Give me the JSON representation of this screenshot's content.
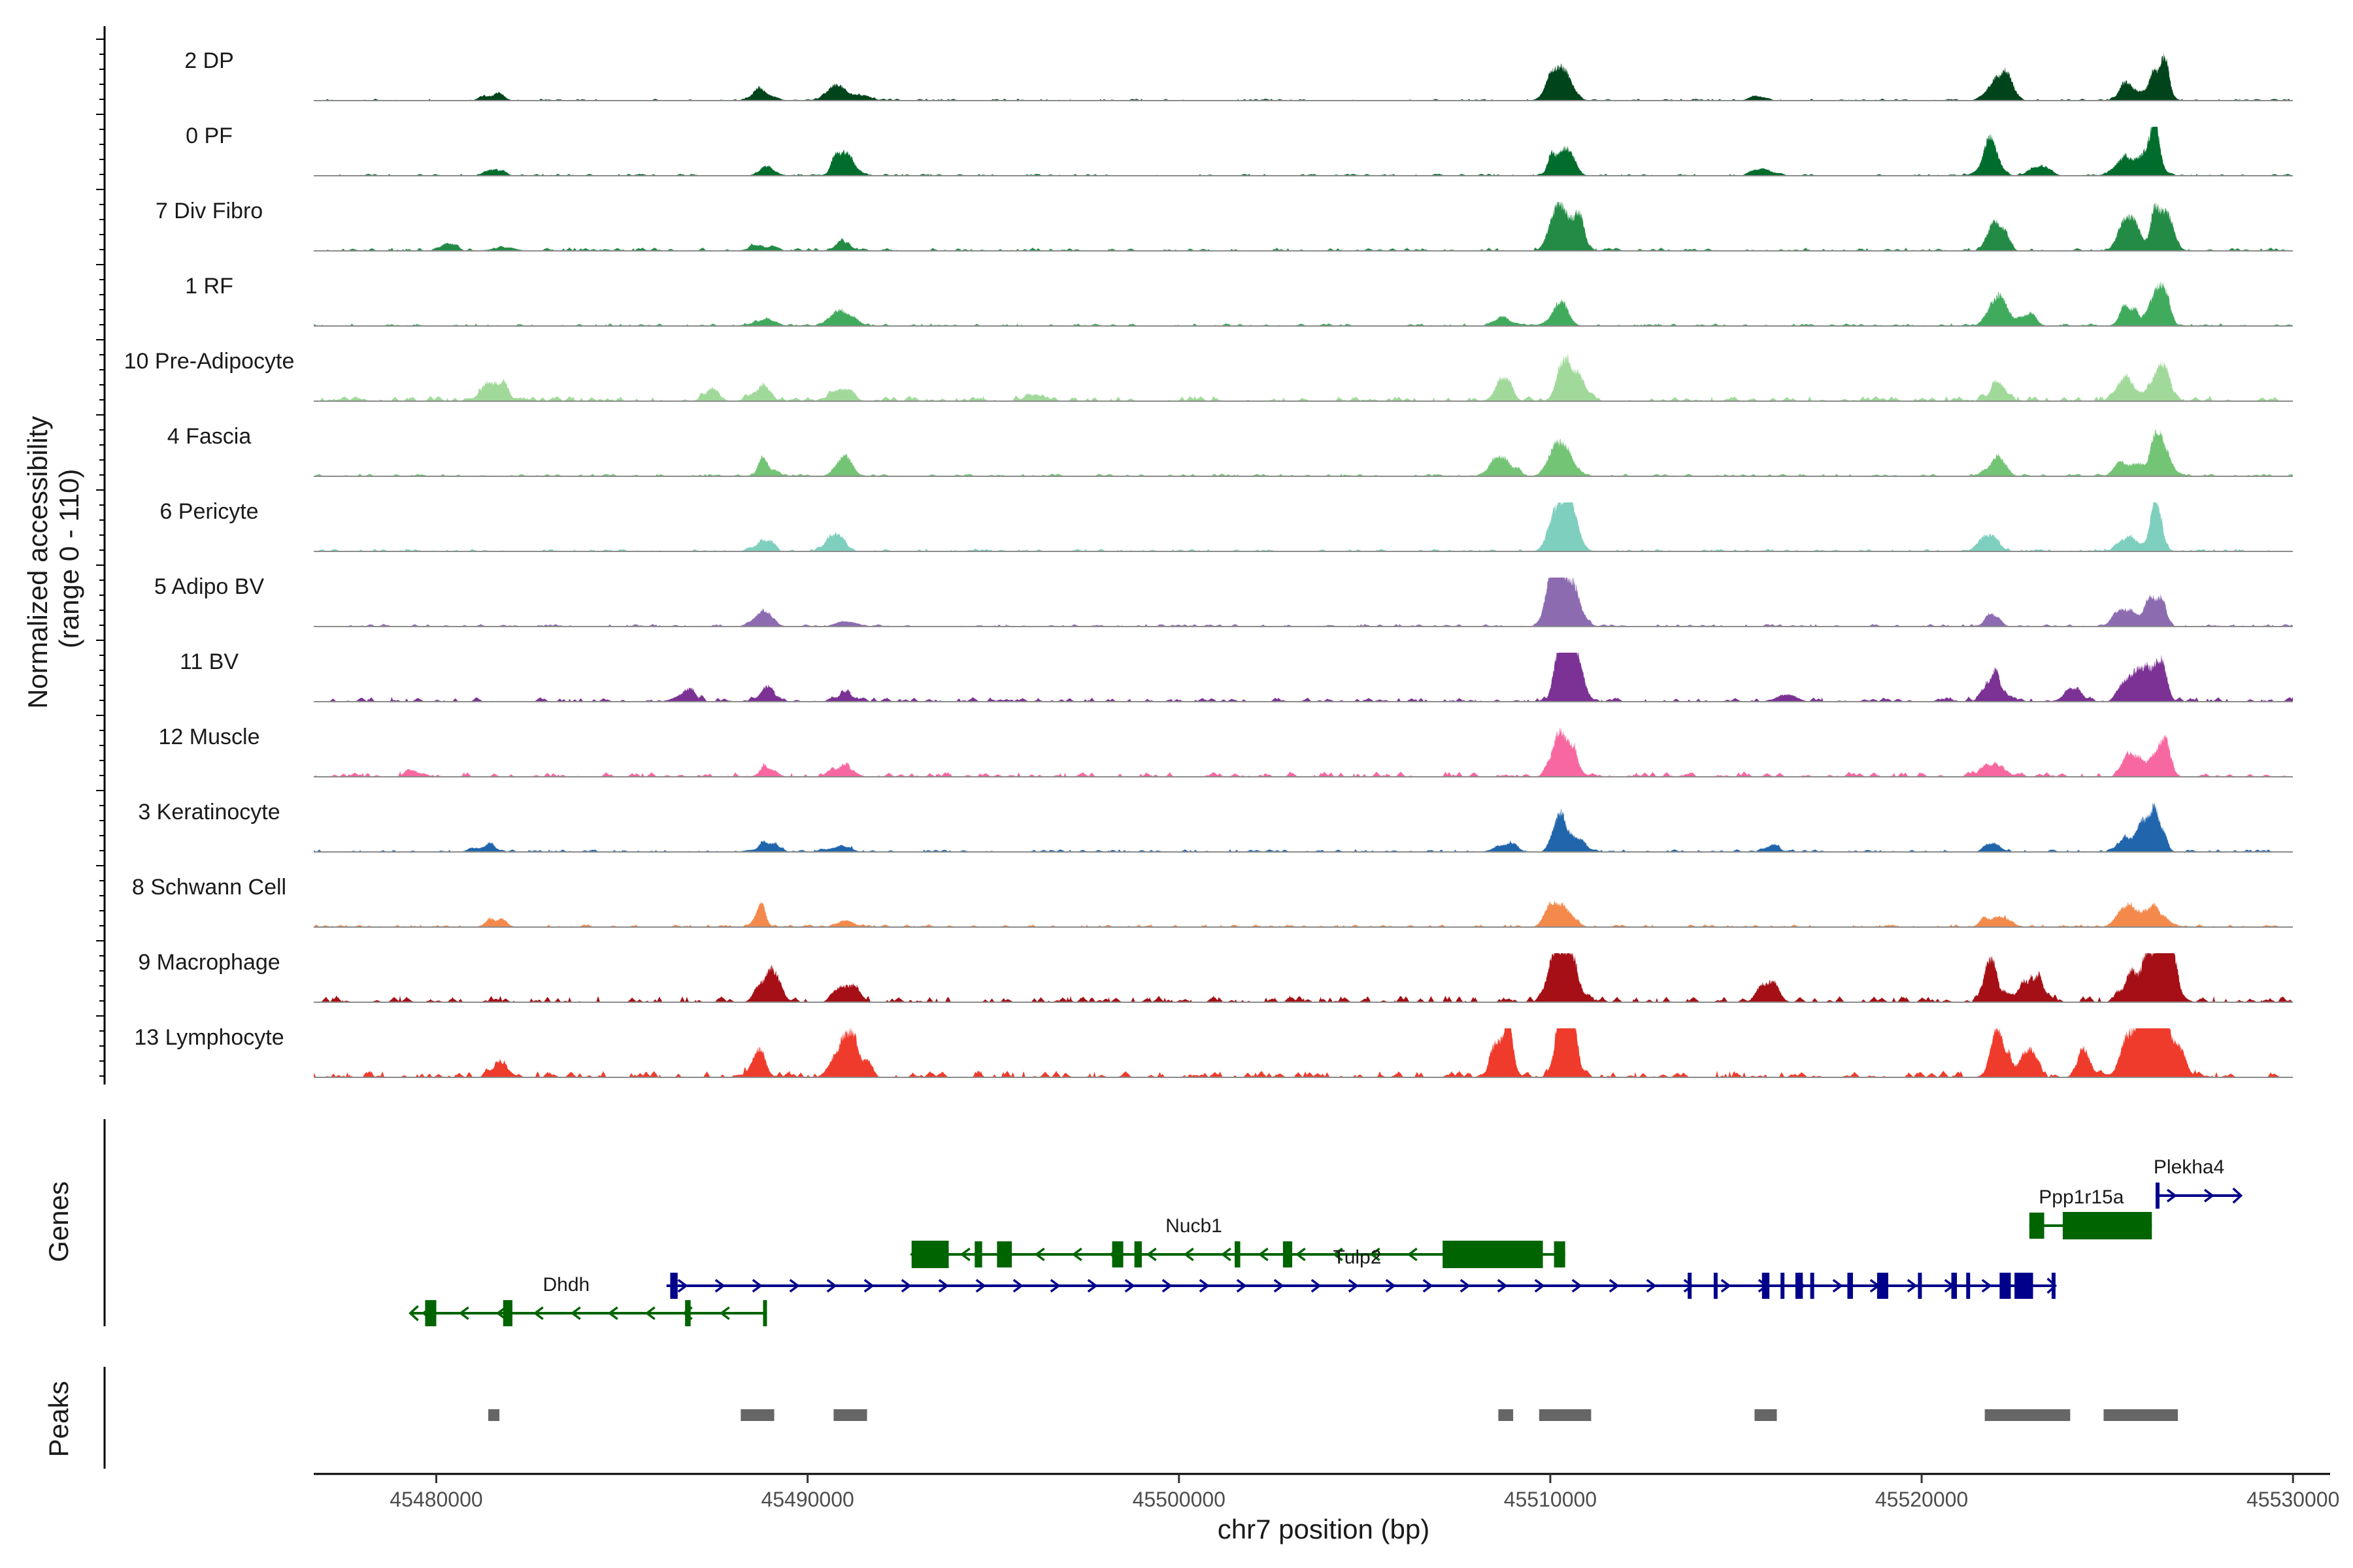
{
  "chart_data": {
    "type": "area",
    "ylabel": [
      "Normalized accessibility",
      "(range 0 - 110)"
    ],
    "ylim": [
      0,
      110
    ],
    "xlabel": "chr7 position (bp)",
    "xlim": [
      45476700,
      45531000
    ],
    "xticks": [
      {
        "value": 45480000,
        "label": "45480000"
      },
      {
        "value": 45490000,
        "label": "45490000"
      },
      {
        "value": 45500000,
        "label": "45500000"
      },
      {
        "value": 45510000,
        "label": "45510000"
      },
      {
        "value": 45520000,
        "label": "45520000"
      },
      {
        "value": 45530000,
        "label": "45530000"
      }
    ],
    "series": [
      {
        "name": "2 DP",
        "color": "#00441b",
        "noise": 3,
        "peaks": [
          [
            45481550,
            10
          ],
          [
            45488800,
            10
          ],
          [
            45490900,
            14
          ],
          [
            45491300,
            6
          ],
          [
            45510300,
            36
          ],
          [
            45515700,
            5
          ],
          [
            45522000,
            28
          ],
          [
            45525600,
            16
          ],
          [
            45526300,
            42
          ]
        ]
      },
      {
        "name": "0 PF",
        "color": "#006d2c",
        "noise": 3,
        "peaks": [
          [
            45481550,
            8
          ],
          [
            45488800,
            8
          ],
          [
            45490900,
            22
          ],
          [
            45491300,
            7
          ],
          [
            45510300,
            38
          ],
          [
            45515700,
            8
          ],
          [
            45522000,
            36
          ],
          [
            45523000,
            10
          ],
          [
            45525600,
            20
          ],
          [
            45526300,
            40
          ]
        ]
      },
      {
        "name": "7 Div Fibro",
        "color": "#238b45",
        "noise": 5,
        "peaks": [
          [
            45480200,
            5
          ],
          [
            45481800,
            4
          ],
          [
            45488800,
            7
          ],
          [
            45490900,
            8
          ],
          [
            45510300,
            62
          ],
          [
            45510700,
            30
          ],
          [
            45522000,
            30
          ],
          [
            45525700,
            34
          ],
          [
            45526300,
            52
          ]
        ]
      },
      {
        "name": "1 RF",
        "color": "#41ab5d",
        "noise": 4,
        "peaks": [
          [
            45488800,
            8
          ],
          [
            45490900,
            26
          ],
          [
            45508800,
            10
          ],
          [
            45510300,
            22
          ],
          [
            45522000,
            26
          ],
          [
            45523000,
            12
          ],
          [
            45525600,
            22
          ],
          [
            45526300,
            40
          ]
        ]
      },
      {
        "name": "10 Pre-Adipocyte",
        "color": "#a1d99b",
        "noise": 8,
        "peaks": [
          [
            45481550,
            24
          ],
          [
            45487200,
            10
          ],
          [
            45488800,
            18
          ],
          [
            45490900,
            14
          ],
          [
            45496000,
            6
          ],
          [
            45508800,
            20
          ],
          [
            45510300,
            30
          ],
          [
            45510700,
            26
          ],
          [
            45522000,
            20
          ],
          [
            45525600,
            30
          ],
          [
            45526300,
            36
          ]
        ]
      },
      {
        "name": "4 Fascia",
        "color": "#74c476",
        "noise": 4,
        "peaks": [
          [
            45488800,
            14
          ],
          [
            45490900,
            18
          ],
          [
            45508800,
            22
          ],
          [
            45510300,
            38
          ],
          [
            45522000,
            20
          ],
          [
            45525600,
            16
          ],
          [
            45526300,
            38
          ]
        ]
      },
      {
        "name": "6 Pericyte",
        "color": "#7ecfbe",
        "noise": 4,
        "peaks": [
          [
            45488800,
            16
          ],
          [
            45490900,
            14
          ],
          [
            45510300,
            48
          ],
          [
            45510500,
            30
          ],
          [
            45522000,
            14
          ],
          [
            45525600,
            20
          ],
          [
            45526300,
            34
          ]
        ]
      },
      {
        "name": "5 Adipo BV",
        "color": "#8c6bb1",
        "noise": 4,
        "peaks": [
          [
            45488800,
            12
          ],
          [
            45490900,
            6
          ],
          [
            45510300,
            56
          ],
          [
            45510500,
            34
          ],
          [
            45522000,
            12
          ],
          [
            45525600,
            22
          ],
          [
            45526300,
            40
          ]
        ]
      },
      {
        "name": "11 BV",
        "color": "#7b3294",
        "noise": 7,
        "peaks": [
          [
            45486800,
            12
          ],
          [
            45488800,
            14
          ],
          [
            45490900,
            8
          ],
          [
            45510300,
            56
          ],
          [
            45510600,
            30
          ],
          [
            45516500,
            8
          ],
          [
            45522000,
            20
          ],
          [
            45524000,
            14
          ],
          [
            45525600,
            26
          ],
          [
            45526300,
            42
          ]
        ]
      },
      {
        "name": "12 Muscle",
        "color": "#f768a1",
        "noise": 8,
        "peaks": [
          [
            45479400,
            6
          ],
          [
            45488800,
            10
          ],
          [
            45490900,
            14
          ],
          [
            45510300,
            32
          ],
          [
            45510700,
            18
          ],
          [
            45522000,
            14
          ],
          [
            45525600,
            26
          ],
          [
            45526300,
            30
          ]
        ]
      },
      {
        "name": "3 Keratinocyte",
        "color": "#2166ac",
        "noise": 4,
        "peaks": [
          [
            45481200,
            10
          ],
          [
            45488800,
            12
          ],
          [
            45490900,
            6
          ],
          [
            45508800,
            10
          ],
          [
            45510300,
            36
          ],
          [
            45510600,
            18
          ],
          [
            45516000,
            6
          ],
          [
            45522000,
            10
          ],
          [
            45525600,
            16
          ],
          [
            45526300,
            46
          ]
        ]
      },
      {
        "name": "8 Schwann Cell",
        "color": "#f4894c",
        "noise": 4,
        "peaks": [
          [
            45481550,
            10
          ],
          [
            45488800,
            16
          ],
          [
            45490900,
            6
          ],
          [
            45510300,
            30
          ],
          [
            45522000,
            16
          ],
          [
            45525600,
            24
          ],
          [
            45526300,
            28
          ]
        ]
      },
      {
        "name": "9 Macrophage",
        "color": "#a50f15",
        "noise": 10,
        "peaks": [
          [
            45488800,
            36
          ],
          [
            45490900,
            14
          ],
          [
            45491300,
            12
          ],
          [
            45510300,
            44
          ],
          [
            45510700,
            28
          ],
          [
            45515700,
            24
          ],
          [
            45522000,
            40
          ],
          [
            45523000,
            24
          ],
          [
            45525600,
            26
          ],
          [
            45526300,
            74
          ],
          [
            45526700,
            34
          ]
        ]
      },
      {
        "name": "13 Lymphocyte",
        "color": "#ef3b2c",
        "noise": 10,
        "peaks": [
          [
            45481550,
            14
          ],
          [
            45488800,
            26
          ],
          [
            45490900,
            22
          ],
          [
            45491300,
            36
          ],
          [
            45508800,
            44
          ],
          [
            45510300,
            64
          ],
          [
            45510600,
            40
          ],
          [
            45522000,
            50
          ],
          [
            45523000,
            28
          ],
          [
            45524500,
            30
          ],
          [
            45525600,
            48
          ],
          [
            45526300,
            98
          ],
          [
            45526800,
            36
          ]
        ]
      }
    ],
    "genes": [
      {
        "name": "Plekhka4_fix",
        "label": "Plekha4",
        "strand": "+",
        "color": "#00008b",
        "start": 45526300,
        "end": 45528600,
        "row": 0,
        "label_at": 45527200,
        "exons": [
          [
            45526300,
            45526400
          ]
        ]
      },
      {
        "name": "Ppp1r15a",
        "label": "Ppp1r15a",
        "strand": "",
        "color": "#006400",
        "start": 45522900,
        "end": 45526200,
        "row": 1,
        "label_at": 45524300,
        "exons": [
          [
            45522900,
            45523300
          ],
          [
            45523800,
            45526200
          ]
        ]
      },
      {
        "name": "Nucb1",
        "label": "Nucb1",
        "strand": "-",
        "color": "#006400",
        "start": 45492800,
        "end": 45510400,
        "row": 2,
        "label_at": 45500400,
        "exons": [
          [
            45492800,
            45493800
          ],
          [
            45494500,
            45494700
          ],
          [
            45495100,
            45495500
          ],
          [
            45498200,
            45498500
          ],
          [
            45498800,
            45499000
          ],
          [
            45501500,
            45501650
          ],
          [
            45502800,
            45503050
          ],
          [
            45507100,
            45509800
          ],
          [
            45510100,
            45510400
          ]
        ]
      },
      {
        "name": "Tulp2",
        "label": "Tulp2",
        "strand": "+",
        "color": "#00008b",
        "start": 45486200,
        "end": 45523600,
        "row": 3,
        "label_at": 45504800,
        "exons": [
          [
            45486300,
            45486500
          ],
          [
            45513700,
            45513800
          ],
          [
            45514400,
            45514500
          ],
          [
            45515700,
            45515900
          ],
          [
            45516200,
            45516300
          ],
          [
            45516600,
            45516800
          ],
          [
            45517000,
            45517100
          ],
          [
            45518000,
            45518150
          ],
          [
            45518800,
            45519100
          ],
          [
            45519900,
            45520000
          ],
          [
            45520800,
            45520950
          ],
          [
            45521200,
            45521300
          ],
          [
            45522100,
            45522400
          ],
          [
            45522500,
            45523000
          ],
          [
            45523500,
            45523600
          ]
        ]
      },
      {
        "name": "Dhdh",
        "label": "Dhdh",
        "strand": "-",
        "color": "#006400",
        "start": 45479300,
        "end": 45488900,
        "row": 4,
        "label_at": 45483500,
        "exons": [
          [
            45479700,
            45480000
          ],
          [
            45481800,
            45482050
          ],
          [
            45486700,
            45486850
          ],
          [
            45488800,
            45488900
          ]
        ]
      }
    ],
    "peaks": [
      [
        45481400,
        45481700
      ],
      [
        45488200,
        45489100
      ],
      [
        45490700,
        45491600
      ],
      [
        45508600,
        45509000
      ],
      [
        45509700,
        45511100
      ],
      [
        45515500,
        45516100
      ],
      [
        45521700,
        45524000
      ],
      [
        45524900,
        45526900
      ]
    ],
    "panel_labels": {
      "genes": "Genes",
      "peaks": "Peaks"
    }
  }
}
